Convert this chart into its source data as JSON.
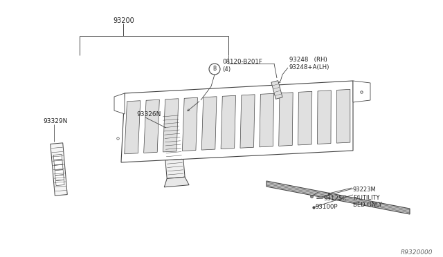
{
  "bg_color": "#ffffff",
  "line_color": "#444444",
  "label_color": "#222222",
  "part_number_93200": "93200",
  "part_number_93326N": "93326N",
  "part_number_93329N": "93329N",
  "part_number_08120": "08120-B201F\n(4)",
  "part_number_93248": "93248   (RH)\n93248+A(LH)",
  "part_number_93223M": "93223M\nF/UTILITY\nBED ONLY",
  "part_number_93125C": "93125C",
  "part_number_93100P": "93100P",
  "watermark": "R9320000",
  "figsize": [
    6.4,
    3.72
  ],
  "dpi": 100
}
